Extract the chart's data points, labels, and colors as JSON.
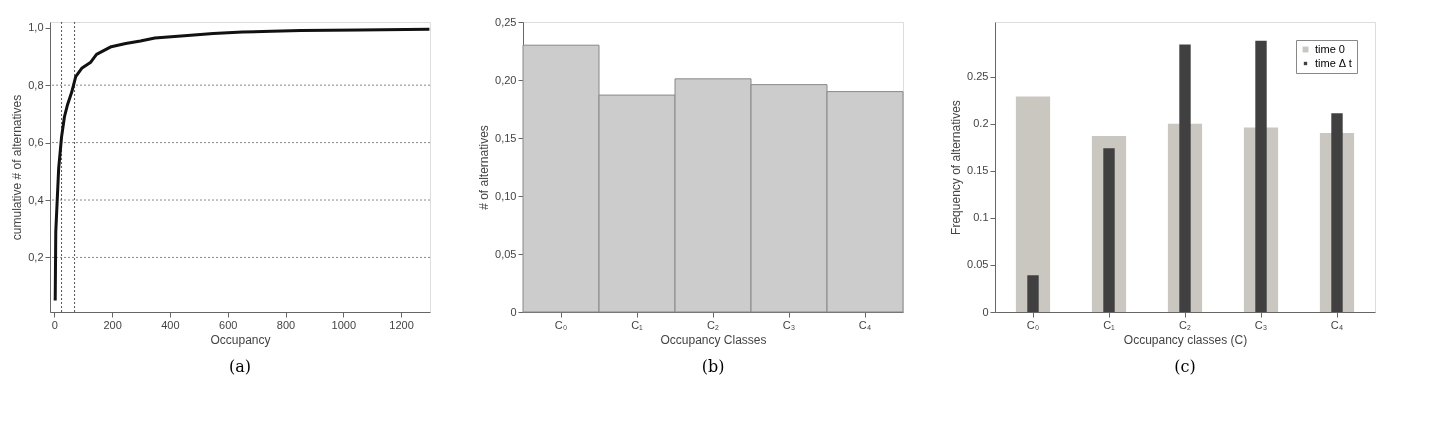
{
  "chart_data": [
    {
      "type": "line",
      "title": "(a)",
      "xlabel": "Occupancy",
      "ylabel": "cumulative # of alternatives",
      "series": [
        {
          "color": "#111111",
          "x": [
            3,
            5,
            15,
            25,
            35,
            45,
            60,
            74,
            96,
            126,
            146,
            197,
            247,
            298,
            348,
            450,
            550,
            651,
            752,
            853,
            1055,
            1298
          ],
          "values": [
            0.05,
            0.29,
            0.51,
            0.62,
            0.69,
            0.73,
            0.775,
            0.83,
            0.86,
            0.88,
            0.907,
            0.934,
            0.945,
            0.954,
            0.964,
            0.972,
            0.98,
            0.985,
            0.988,
            0.99,
            0.992,
            0.995
          ]
        }
      ],
      "xlim": [
        -15,
        1300
      ],
      "xticks": [
        0,
        200,
        400,
        600,
        800,
        1000,
        1200
      ],
      "ylim": [
        0.01,
        1.02
      ],
      "yticks": [
        {
          "value": 0.2,
          "label": "0,2"
        },
        {
          "value": 0.4,
          "label": "0,4"
        },
        {
          "value": 0.6,
          "label": "0,6"
        },
        {
          "value": 0.8,
          "label": "0,8"
        },
        {
          "value": 1.0,
          "label": "1,0"
        }
      ],
      "line_style": "solid",
      "ref_lines": [
        {
          "axis": "y",
          "value": 0.2,
          "line_style": "dotted",
          "color": "#888888"
        },
        {
          "axis": "y",
          "value": 0.4,
          "line_style": "dotted",
          "color": "#888888"
        },
        {
          "axis": "y",
          "value": 0.6,
          "line_style": "dotted",
          "color": "#888888"
        },
        {
          "axis": "y",
          "value": 0.8,
          "line_style": "dotted",
          "color": "#888888"
        },
        {
          "axis": "x",
          "value": 25,
          "line_style": "dotted",
          "color": "#555555"
        },
        {
          "axis": "x",
          "value": 70,
          "line_style": "dotted",
          "color": "#555555"
        }
      ]
    },
    {
      "type": "bar",
      "title": "(b)",
      "xlabel": "Occupancy Classes",
      "ylabel": "# of alternatives",
      "categories": [
        "C₀",
        "C₁",
        "C₂",
        "C₃",
        "C₄"
      ],
      "series": [
        {
          "color": "#cccccc",
          "values": [
            0.23,
            0.187,
            0.201,
            0.196,
            0.19
          ]
        }
      ],
      "ylim": [
        0,
        0.25
      ],
      "yticks": [
        0,
        {
          "value": 0.05,
          "label": "0,05"
        },
        {
          "value": 0.1,
          "label": "0,10"
        },
        {
          "value": 0.15,
          "label": "0,15"
        },
        {
          "value": 0.2,
          "label": "0,20"
        },
        {
          "value": 0.25,
          "label": "0,25"
        }
      ]
    },
    {
      "type": "bar",
      "title": "(c)",
      "xlabel": "Occupancy classes (C)",
      "ylabel": "Frequency of alternatives",
      "categories": [
        "C₀",
        "C₁",
        "C₂",
        "C₃",
        "C₄"
      ],
      "series": [
        {
          "name": "time 0",
          "color": "#c9c7bf",
          "values": [
            0.229,
            0.187,
            0.2,
            0.196,
            0.19
          ]
        },
        {
          "name": "time Δ t",
          "color": "#404040",
          "values": [
            0.039,
            0.174,
            0.284,
            0.288,
            0.211
          ]
        }
      ],
      "ylim": [
        0,
        0.308
      ],
      "yticks": [
        0,
        0.05,
        0.1,
        0.15,
        0.2,
        0.25
      ],
      "legend": "top right"
    }
  ]
}
